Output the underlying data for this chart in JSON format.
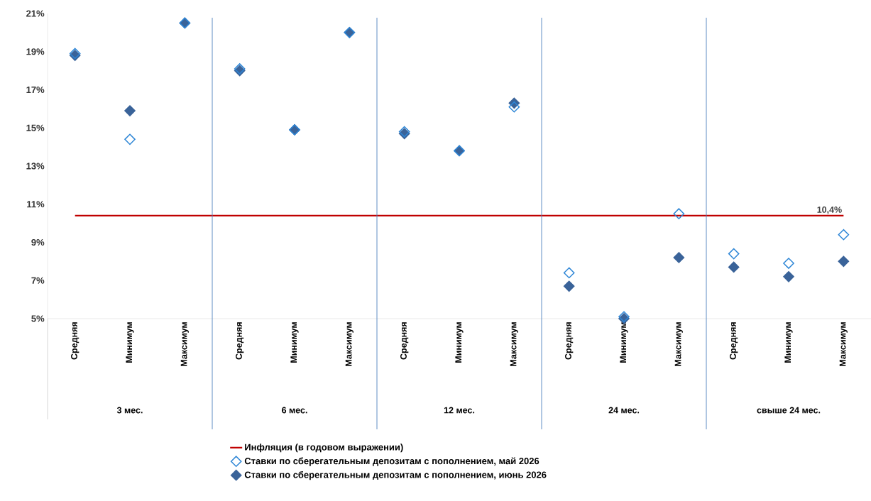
{
  "chart_data": {
    "type": "scatter",
    "categories": [
      "Средняя",
      "Минимум",
      "Максимум",
      "Средняя",
      "Минимум",
      "Максимум",
      "Средняя",
      "Минимум",
      "Максимум",
      "Средняя",
      "Минимум",
      "Максимум",
      "Средняя",
      "Минимум",
      "Максимум"
    ],
    "series": [
      {
        "name": "Инфляция (в годовом выражении)",
        "type": "line",
        "color": "#c00000",
        "values": [
          10.4,
          10.4,
          10.4,
          10.4,
          10.4,
          10.4,
          10.4,
          10.4,
          10.4,
          10.4,
          10.4,
          10.4,
          10.4,
          10.4,
          10.4
        ],
        "value_labels": [
          null,
          null,
          null,
          null,
          null,
          null,
          null,
          null,
          null,
          null,
          null,
          null,
          null,
          null,
          "10,4%"
        ],
        "marker": "none"
      },
      {
        "name": "Ставки по сберегательным депозитам с пополнением, май 2026",
        "color": "#2e86d6",
        "values": [
          18.9,
          14.4,
          20.5,
          18.1,
          14.9,
          20.0,
          14.8,
          13.8,
          16.1,
          7.4,
          5.1,
          10.5,
          8.4,
          7.9,
          9.4
        ]
      },
      {
        "name": "Ставки по сберегательным депозитам с пополнением, июнь 2026",
        "color": "#3a6399",
        "values": [
          18.8,
          15.9,
          20.5,
          18.0,
          14.9,
          20.0,
          14.7,
          13.8,
          16.3,
          6.7,
          5.0,
          8.2,
          7.7,
          7.2,
          8.0
        ]
      }
    ],
    "annotations": [
      "3 мес.",
      "6 мес.",
      "12 мес.",
      "24 мес.",
      "свыше 24 мес."
    ],
    "ylim": [
      5,
      21
    ],
    "yticks": [
      {
        "value": 5,
        "label": "5%"
      },
      {
        "value": 7,
        "label": "7%"
      },
      {
        "value": 9,
        "label": "9%"
      },
      {
        "value": 11,
        "label": "11%"
      },
      {
        "value": 13,
        "label": "13%"
      },
      {
        "value": 15,
        "label": "15%"
      },
      {
        "value": 17,
        "label": "17%"
      },
      {
        "value": 19,
        "label": "19%"
      },
      {
        "value": 21,
        "label": "21%"
      }
    ],
    "marker": "diamond",
    "grid": false,
    "legend": "bottom"
  }
}
